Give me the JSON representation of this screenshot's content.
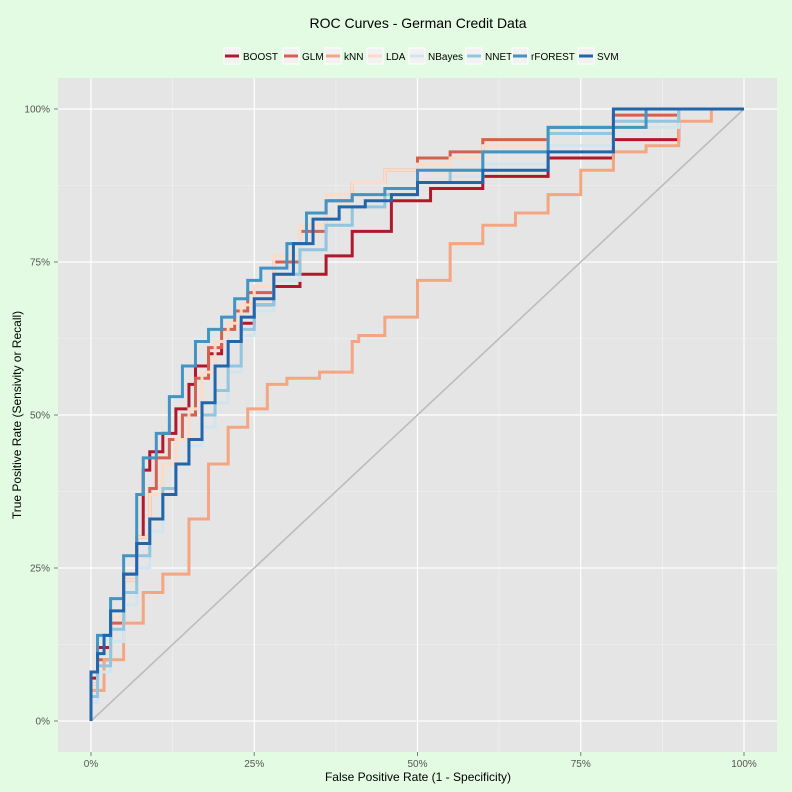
{
  "chart_data": {
    "type": "line",
    "title": "ROC Curves - German Credit Data",
    "xlabel": "False Positive Rate (1 - Specificity)",
    "ylabel": "True Positive Rate (Sensivity or Recall)",
    "xlim": [
      0,
      1
    ],
    "ylim": [
      0,
      1
    ],
    "x_ticks": [
      0,
      0.25,
      0.5,
      0.75,
      1
    ],
    "x_tick_labels": [
      "0%",
      "25%",
      "50%",
      "75%",
      "100%"
    ],
    "y_ticks": [
      0,
      0.25,
      0.5,
      0.75,
      1
    ],
    "y_tick_labels": [
      "0%",
      "25%",
      "50%",
      "75%",
      "100%"
    ],
    "grid": true,
    "legend_position": "top",
    "reference_line": {
      "x": [
        0,
        1
      ],
      "y": [
        0,
        1
      ],
      "color": "#bcbcbc"
    },
    "series": [
      {
        "name": "BOOST",
        "color": "#b2182b",
        "x": [
          0,
          0.01,
          0.03,
          0.05,
          0.07,
          0.08,
          0.09,
          0.11,
          0.13,
          0.15,
          0.16,
          0.18,
          0.2,
          0.23,
          0.25,
          0.28,
          0.32,
          0.36,
          0.4,
          0.46,
          0.52,
          0.6,
          0.7,
          0.8,
          0.9,
          1
        ],
        "y": [
          0,
          0.07,
          0.12,
          0.17,
          0.24,
          0.3,
          0.41,
          0.44,
          0.47,
          0.51,
          0.55,
          0.58,
          0.6,
          0.62,
          0.65,
          0.68,
          0.71,
          0.73,
          0.76,
          0.8,
          0.85,
          0.87,
          0.89,
          0.92,
          0.95,
          1
        ]
      },
      {
        "name": "GLM",
        "color": "#d6604d",
        "x": [
          0,
          0.01,
          0.03,
          0.05,
          0.07,
          0.09,
          0.1,
          0.12,
          0.14,
          0.16,
          0.18,
          0.2,
          0.22,
          0.24,
          0.28,
          0.32,
          0.36,
          0.4,
          0.45,
          0.5,
          0.55,
          0.6,
          0.7,
          0.8,
          0.9,
          1
        ],
        "y": [
          0,
          0.06,
          0.1,
          0.16,
          0.23,
          0.3,
          0.38,
          0.43,
          0.46,
          0.5,
          0.56,
          0.61,
          0.64,
          0.67,
          0.7,
          0.75,
          0.8,
          0.85,
          0.88,
          0.9,
          0.92,
          0.93,
          0.95,
          0.97,
          0.99,
          1
        ]
      },
      {
        "name": "kNN",
        "color": "#f4a582",
        "x": [
          0,
          0.02,
          0.05,
          0.08,
          0.11,
          0.15,
          0.18,
          0.21,
          0.24,
          0.27,
          0.3,
          0.35,
          0.4,
          0.41,
          0.45,
          0.5,
          0.55,
          0.6,
          0.65,
          0.7,
          0.75,
          0.8,
          0.85,
          0.9,
          0.95,
          1
        ],
        "y": [
          0,
          0.05,
          0.1,
          0.16,
          0.21,
          0.24,
          0.33,
          0.42,
          0.48,
          0.51,
          0.55,
          0.56,
          0.57,
          0.62,
          0.63,
          0.66,
          0.72,
          0.78,
          0.81,
          0.83,
          0.86,
          0.9,
          0.93,
          0.94,
          0.98,
          1
        ]
      },
      {
        "name": "LDA",
        "color": "#fddbc7",
        "x": [
          0,
          0.01,
          0.03,
          0.05,
          0.07,
          0.09,
          0.11,
          0.13,
          0.15,
          0.17,
          0.19,
          0.21,
          0.23,
          0.25,
          0.28,
          0.32,
          0.36,
          0.4,
          0.45,
          0.5,
          0.55,
          0.6,
          0.7,
          0.8,
          0.9,
          1
        ],
        "y": [
          0,
          0.06,
          0.11,
          0.17,
          0.23,
          0.3,
          0.37,
          0.42,
          0.46,
          0.51,
          0.57,
          0.62,
          0.65,
          0.68,
          0.71,
          0.76,
          0.81,
          0.86,
          0.88,
          0.9,
          0.91,
          0.92,
          0.94,
          0.96,
          0.98,
          1
        ]
      },
      {
        "name": "NBayes",
        "color": "#d1e5f0",
        "x": [
          0,
          0.01,
          0.03,
          0.05,
          0.07,
          0.09,
          0.11,
          0.13,
          0.15,
          0.17,
          0.19,
          0.21,
          0.23,
          0.25,
          0.28,
          0.32,
          0.36,
          0.4,
          0.45,
          0.5,
          0.55,
          0.6,
          0.7,
          0.8,
          0.9,
          1
        ],
        "y": [
          0,
          0.03,
          0.08,
          0.13,
          0.19,
          0.25,
          0.31,
          0.37,
          0.42,
          0.45,
          0.48,
          0.52,
          0.57,
          0.63,
          0.67,
          0.72,
          0.77,
          0.81,
          0.84,
          0.86,
          0.88,
          0.89,
          0.91,
          0.94,
          0.97,
          1
        ]
      },
      {
        "name": "NNET",
        "color": "#92c5de",
        "x": [
          0,
          0.01,
          0.03,
          0.05,
          0.07,
          0.09,
          0.11,
          0.13,
          0.15,
          0.17,
          0.19,
          0.21,
          0.23,
          0.25,
          0.28,
          0.32,
          0.36,
          0.4,
          0.45,
          0.5,
          0.55,
          0.6,
          0.7,
          0.8,
          0.9,
          1
        ],
        "y": [
          0,
          0.04,
          0.09,
          0.15,
          0.21,
          0.27,
          0.33,
          0.38,
          0.42,
          0.46,
          0.5,
          0.54,
          0.58,
          0.64,
          0.68,
          0.73,
          0.77,
          0.81,
          0.84,
          0.86,
          0.88,
          0.9,
          0.93,
          0.96,
          0.98,
          1
        ]
      },
      {
        "name": "rFOREST",
        "color": "#4393c3",
        "x": [
          0,
          0.01,
          0.03,
          0.05,
          0.07,
          0.08,
          0.1,
          0.12,
          0.14,
          0.16,
          0.18,
          0.2,
          0.22,
          0.24,
          0.26,
          0.28,
          0.3,
          0.33,
          0.36,
          0.4,
          0.45,
          0.5,
          0.6,
          0.7,
          0.85,
          1
        ],
        "y": [
          0,
          0.08,
          0.14,
          0.2,
          0.27,
          0.37,
          0.43,
          0.47,
          0.53,
          0.58,
          0.62,
          0.64,
          0.66,
          0.69,
          0.72,
          0.74,
          0.74,
          0.78,
          0.83,
          0.85,
          0.86,
          0.87,
          0.9,
          0.93,
          0.97,
          1
        ]
      },
      {
        "name": "SVM",
        "color": "#2166ac",
        "x": [
          0,
          0.01,
          0.02,
          0.03,
          0.05,
          0.07,
          0.09,
          0.11,
          0.13,
          0.15,
          0.17,
          0.19,
          0.21,
          0.23,
          0.25,
          0.28,
          0.31,
          0.34,
          0.38,
          0.42,
          0.46,
          0.5,
          0.6,
          0.7,
          0.8,
          1
        ],
        "y": [
          0,
          0.08,
          0.11,
          0.14,
          0.18,
          0.24,
          0.29,
          0.33,
          0.37,
          0.42,
          0.46,
          0.52,
          0.58,
          0.62,
          0.66,
          0.69,
          0.73,
          0.78,
          0.82,
          0.84,
          0.85,
          0.86,
          0.88,
          0.9,
          0.93,
          1
        ]
      }
    ]
  }
}
